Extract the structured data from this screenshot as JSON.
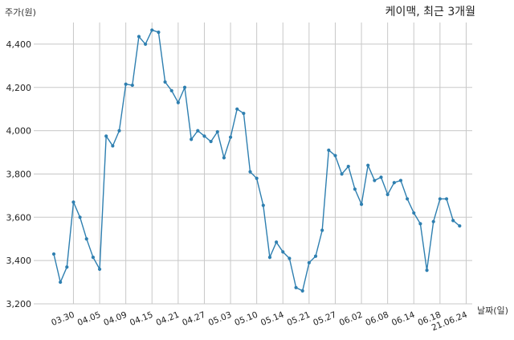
{
  "chart_data": {
    "type": "line",
    "title": "케이맥, 최근 3개월",
    "xlabel": "날짜(일)",
    "ylabel": "주가(원)",
    "ylim": [
      3200,
      4500
    ],
    "yticks": [
      3200,
      3400,
      3600,
      3800,
      4000,
      4200,
      4400
    ],
    "ytick_labels": [
      "3,200",
      "3,400",
      "3,600",
      "3,800",
      "4,000",
      "4,200",
      "4,400"
    ],
    "xtick_labels": [
      "03.30",
      "04.05",
      "04.09",
      "04.15",
      "04.21",
      "04.27",
      "05.03",
      "05.10",
      "05.14",
      "05.21",
      "05.27",
      "06.02",
      "06.08",
      "06.14",
      "06.18",
      "21.06.24"
    ],
    "xtick_index": [
      3,
      7,
      11,
      15,
      19,
      23,
      27,
      31,
      35,
      39,
      43,
      47,
      51,
      55,
      59,
      63
    ],
    "grid": true,
    "line_color": "#2e7fb0",
    "series": [
      {
        "values": [
          3430,
          3300,
          3370,
          3670,
          3600,
          3500,
          3415,
          3360,
          3975,
          3930,
          4000,
          4215,
          4210,
          4435,
          4400,
          4465,
          4455,
          4225,
          4185,
          4130,
          4200,
          3960,
          4000,
          3975,
          3950,
          3995,
          3875,
          3970,
          4100,
          4080,
          3810,
          3780,
          3655,
          3415,
          3485,
          3440,
          3410,
          3275,
          3260,
          3390,
          3420,
          3540,
          3910,
          3885,
          3800,
          3835,
          3730,
          3660,
          3840,
          3770,
          3785,
          3705,
          3760,
          3770,
          3685,
          3620,
          3570,
          3355,
          3580,
          3685,
          3685,
          3585,
          3560
        ]
      }
    ]
  }
}
